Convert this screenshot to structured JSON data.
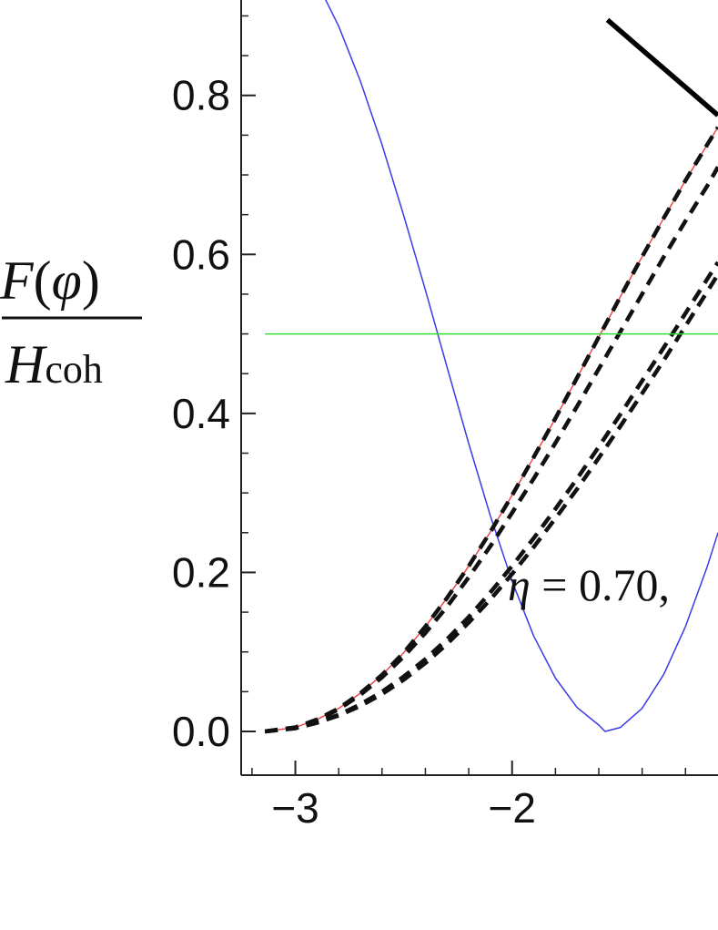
{
  "chart_data": {
    "type": "line",
    "title": "",
    "xlabel": "",
    "ylabel": {
      "numerator_func": "F",
      "numerator_open": "(",
      "numerator_var": "φ",
      "numerator_close": ")",
      "denominator_main": "H",
      "denominator_sub": "coh"
    },
    "xlim": [
      -3.25,
      -1.05
    ],
    "ylim": [
      -0.055,
      0.92
    ],
    "x_ticks": [
      {
        "value": -3,
        "label": "−3"
      },
      {
        "value": -2,
        "label": "−2"
      }
    ],
    "y_ticks": [
      {
        "value": 0.0,
        "label": "0.0"
      },
      {
        "value": 0.2,
        "label": "0.2"
      },
      {
        "value": 0.4,
        "label": "0.4"
      },
      {
        "value": 0.6,
        "label": "0.6"
      },
      {
        "value": 0.8,
        "label": "0.8"
      }
    ],
    "annotation": {
      "var": "η",
      "rest": " = 0.70,",
      "x": -2.02,
      "y": 0.165
    },
    "series": [
      {
        "kind": "blue",
        "color": "#3a3ae8",
        "width": 1.5,
        "dash": "",
        "x": [
          -3.14,
          -3.0,
          -2.9,
          -2.8,
          -2.7,
          -2.6,
          -2.5,
          -2.4,
          -2.3,
          -2.2,
          -2.1,
          -2.0,
          -1.9,
          -1.8,
          -1.7,
          -1.6,
          -1.571,
          -1.5,
          -1.4,
          -1.3,
          -1.2,
          -1.1,
          -1.05
        ],
        "y": [
          1.0,
          0.98,
          0.942,
          0.887,
          0.818,
          0.738,
          0.649,
          0.555,
          0.458,
          0.362,
          0.271,
          0.189,
          0.12,
          0.067,
          0.03,
          0.008,
          0.0,
          0.005,
          0.029,
          0.072,
          0.132,
          0.207,
          0.25
        ]
      },
      {
        "kind": "red",
        "color": "#e84a4a",
        "width": 1.5,
        "dash": "",
        "x": [
          -3.14,
          -3.0,
          -2.9,
          -2.8,
          -2.7,
          -2.6,
          -2.5,
          -2.4,
          -2.3,
          -2.2,
          -2.1,
          -2.0,
          -1.9,
          -1.8,
          -1.7,
          -1.6,
          -1.5,
          -1.4,
          -1.3,
          -1.2,
          -1.1,
          -1.05
        ],
        "y": [
          0.0,
          0.005,
          0.015,
          0.029,
          0.048,
          0.071,
          0.099,
          0.132,
          0.168,
          0.208,
          0.251,
          0.297,
          0.345,
          0.394,
          0.445,
          0.496,
          0.547,
          0.597,
          0.646,
          0.693,
          0.738,
          0.76
        ]
      },
      {
        "kind": "dashed",
        "color": "#111111",
        "width": 4.5,
        "dash": "14 9",
        "x": [
          -3.14,
          -3.0,
          -2.9,
          -2.8,
          -2.7,
          -2.6,
          -2.5,
          -2.4,
          -2.3,
          -2.2,
          -2.1,
          -2.0,
          -1.9,
          -1.8,
          -1.7,
          -1.6,
          -1.5,
          -1.4,
          -1.3,
          -1.2,
          -1.1,
          -1.05
        ],
        "y": [
          0.0,
          0.005,
          0.015,
          0.029,
          0.048,
          0.071,
          0.099,
          0.132,
          0.168,
          0.208,
          0.251,
          0.297,
          0.345,
          0.394,
          0.445,
          0.496,
          0.547,
          0.597,
          0.646,
          0.693,
          0.738,
          0.76
        ]
      },
      {
        "kind": "dashed",
        "color": "#111111",
        "width": 4.5,
        "dash": "14 9",
        "x": [
          -3.14,
          -3.0,
          -2.9,
          -2.8,
          -2.7,
          -2.6,
          -2.5,
          -2.4,
          -2.3,
          -2.2,
          -2.1,
          -2.0,
          -1.9,
          -1.8,
          -1.7,
          -1.6,
          -1.5,
          -1.4,
          -1.3,
          -1.2,
          -1.1,
          -1.05
        ],
        "y": [
          0.0,
          0.005,
          0.014,
          0.028,
          0.046,
          0.068,
          0.094,
          0.124,
          0.157,
          0.194,
          0.233,
          0.275,
          0.318,
          0.363,
          0.409,
          0.456,
          0.503,
          0.55,
          0.597,
          0.642,
          0.686,
          0.71
        ]
      },
      {
        "kind": "dashed",
        "color": "#111111",
        "width": 4.5,
        "dash": "14 9",
        "x": [
          -3.14,
          -3.0,
          -2.9,
          -2.8,
          -2.7,
          -2.6,
          -2.5,
          -2.4,
          -2.3,
          -2.2,
          -2.1,
          -2.0,
          -1.9,
          -1.8,
          -1.7,
          -1.6,
          -1.5,
          -1.4,
          -1.3,
          -1.2,
          -1.1,
          -1.05
        ],
        "y": [
          0.0,
          0.004,
          0.011,
          0.021,
          0.034,
          0.05,
          0.069,
          0.091,
          0.116,
          0.144,
          0.175,
          0.208,
          0.243,
          0.28,
          0.318,
          0.358,
          0.399,
          0.441,
          0.483,
          0.526,
          0.569,
          0.59
        ]
      },
      {
        "kind": "dashed",
        "color": "#111111",
        "width": 4.5,
        "dash": "14 9",
        "x": [
          -3.14,
          -3.0,
          -2.9,
          -2.8,
          -2.7,
          -2.6,
          -2.5,
          -2.4,
          -2.3,
          -2.2,
          -2.1,
          -2.0,
          -1.9,
          -1.8,
          -1.7,
          -1.6,
          -1.5,
          -1.4,
          -1.3,
          -1.2,
          -1.1,
          -1.05
        ],
        "y": [
          0.0,
          0.004,
          0.011,
          0.02,
          0.032,
          0.047,
          0.065,
          0.086,
          0.11,
          0.137,
          0.166,
          0.198,
          0.232,
          0.268,
          0.305,
          0.344,
          0.384,
          0.425,
          0.467,
          0.51,
          0.553,
          0.575
        ]
      },
      {
        "kind": "green",
        "color": "#33dd33",
        "width": 1.5,
        "dash": "",
        "x": [
          -3.14,
          -1.05
        ],
        "y": [
          0.5,
          0.5
        ]
      },
      {
        "kind": "thick",
        "color": "#000000",
        "width": 5.5,
        "dash": "",
        "x": [
          -1.56,
          -1.05
        ],
        "y": [
          0.895,
          0.775
        ]
      }
    ]
  }
}
